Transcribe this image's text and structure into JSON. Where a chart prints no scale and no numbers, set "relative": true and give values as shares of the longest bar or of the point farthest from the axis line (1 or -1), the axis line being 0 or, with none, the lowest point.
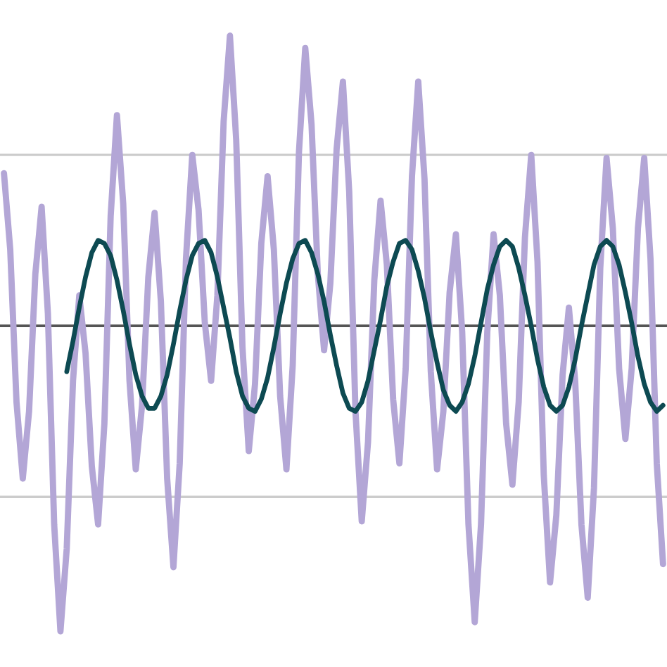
{
  "chart_data": {
    "type": "line",
    "relative": true,
    "marker": "none",
    "line_style": "solid",
    "categories": [
      null,
      null,
      null,
      null,
      null,
      null,
      null,
      null,
      null,
      null,
      null,
      null,
      null,
      null,
      null,
      null,
      null,
      null,
      null,
      null,
      null,
      null,
      null,
      null,
      null,
      null,
      null,
      null,
      null,
      null,
      null,
      null,
      null,
      null,
      null,
      null,
      null,
      null,
      null,
      null,
      null,
      null,
      null,
      null,
      null,
      null,
      null,
      null,
      null,
      null,
      null,
      null,
      null,
      null,
      null,
      null,
      null,
      null,
      null,
      null,
      null,
      null,
      null,
      null,
      null,
      null,
      null,
      null,
      null,
      null,
      null,
      null,
      null,
      null,
      null,
      null,
      null,
      null,
      null,
      null,
      null,
      null,
      null,
      null,
      null,
      null,
      null,
      null,
      null,
      null,
      null,
      null,
      null,
      null,
      null,
      null,
      null,
      null,
      null,
      null,
      null,
      null,
      null,
      null,
      null,
      null
    ],
    "ref_lines": [
      {
        "axis": "y",
        "value": 0.56,
        "label": null,
        "color": "#cccccc"
      },
      {
        "axis": "y",
        "value": -0.56,
        "label": null,
        "color": "#cccccc"
      }
    ],
    "series": [
      {
        "color": "#b3a6d6",
        "values": [
          0.5,
          0.25,
          -0.25,
          -0.5,
          -0.28,
          0.17,
          0.39,
          0.04,
          -0.65,
          -1.0,
          -0.73,
          -0.18,
          0.1,
          -0.09,
          -0.46,
          -0.65,
          -0.32,
          0.36,
          0.69,
          0.4,
          -0.18,
          -0.47,
          -0.26,
          0.16,
          0.37,
          0.08,
          -0.5,
          -0.79,
          -0.45,
          0.22,
          0.56,
          0.38,
          0.01,
          -0.18,
          0.1,
          0.67,
          0.95,
          0.61,
          -0.07,
          -0.41,
          -0.19,
          0.27,
          0.49,
          0.25,
          -0.23,
          -0.47,
          -0.13,
          0.57,
          0.91,
          0.66,
          0.17,
          -0.08,
          0.14,
          0.58,
          0.8,
          0.44,
          -0.28,
          -0.64,
          -0.38,
          0.15,
          0.41,
          0.2,
          -0.24,
          -0.45,
          -0.14,
          0.49,
          0.8,
          0.48,
          -0.15,
          -0.47,
          -0.28,
          0.11,
          0.3,
          -0.02,
          -0.65,
          -0.97,
          -0.65,
          -0.02,
          0.3,
          0.1,
          -0.32,
          -0.52,
          -0.25,
          0.29,
          0.56,
          0.21,
          -0.49,
          -0.84,
          -0.62,
          -0.16,
          0.06,
          -0.18,
          -0.65,
          -0.89,
          -0.53,
          0.19,
          0.55,
          0.32,
          -0.14,
          -0.37,
          -0.14,
          0.32,
          0.55,
          0.22,
          -0.45,
          -0.78
        ]
      },
      {
        "color": "#0d4a52",
        "values": [
          null,
          null,
          null,
          null,
          null,
          null,
          null,
          null,
          null,
          null,
          -0.15,
          -0.05,
          0.06,
          0.16,
          0.24,
          0.28,
          0.27,
          0.23,
          0.15,
          0.05,
          -0.06,
          -0.16,
          -0.23,
          -0.27,
          -0.27,
          -0.23,
          -0.16,
          -0.06,
          0.05,
          0.15,
          0.23,
          0.27,
          0.28,
          0.24,
          0.16,
          0.06,
          -0.04,
          -0.15,
          -0.23,
          -0.27,
          -0.28,
          -0.24,
          -0.17,
          -0.07,
          0.04,
          0.14,
          0.22,
          0.27,
          0.28,
          0.24,
          0.17,
          0.08,
          -0.03,
          -0.13,
          -0.22,
          -0.27,
          -0.28,
          -0.25,
          -0.18,
          -0.08,
          0.02,
          0.13,
          0.21,
          0.27,
          0.28,
          0.25,
          0.18,
          0.09,
          -0.02,
          -0.12,
          -0.21,
          -0.26,
          -0.28,
          -0.25,
          -0.19,
          -0.1,
          0.01,
          0.12,
          0.2,
          0.26,
          0.28,
          0.26,
          0.19,
          0.1,
          0.0,
          -0.11,
          -0.2,
          -0.26,
          -0.28,
          -0.26,
          -0.2,
          -0.11,
          0.0,
          0.1,
          0.2,
          0.26,
          0.28,
          0.26,
          0.2,
          0.11,
          0.01,
          -0.1,
          -0.19,
          -0.25,
          -0.28,
          -0.26
        ]
      }
    ]
  }
}
